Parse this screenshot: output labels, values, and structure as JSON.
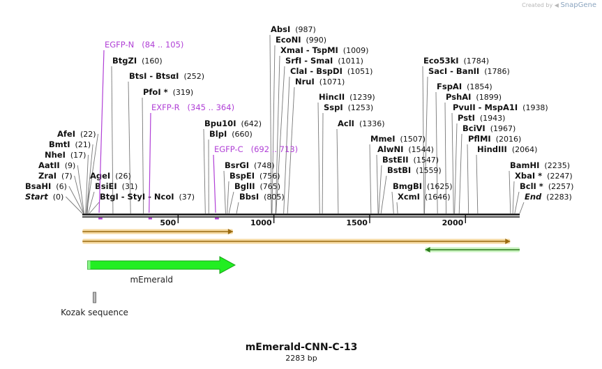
{
  "credit": {
    "prefix": "Created by",
    "brand": "SnapGene"
  },
  "map": {
    "title": "mEmerald-CNN-C-13",
    "length_label": "2283 bp",
    "length": 2283,
    "ruler_ticks": [
      "500",
      "1000",
      "1500",
      "2000"
    ],
    "colors": {
      "primer": "#b03fd6",
      "feature_green": "#22ee22",
      "orf_fill": "#f5d9a0",
      "orf_arrow": "#9a6a10",
      "kozak": "#bbbbbb"
    }
  },
  "enzymes": [
    {
      "name": "Start",
      "pos": "(0)",
      "bp": 0,
      "italic": true
    },
    {
      "name": "BsaHI",
      "pos": "(6)",
      "bp": 6
    },
    {
      "name": "ZraI",
      "pos": "(7)",
      "bp": 7
    },
    {
      "name": "AatII",
      "pos": "(9)",
      "bp": 9
    },
    {
      "name": "NheI",
      "pos": "(17)",
      "bp": 17
    },
    {
      "name": "BmtI",
      "pos": "(21)",
      "bp": 21
    },
    {
      "name": "AfeI",
      "pos": "(22)",
      "bp": 22
    },
    {
      "name": "BtgI - StyI - NcoI",
      "pos": "(37)",
      "bp": 37
    },
    {
      "name": "BsiEI",
      "pos": "(31)",
      "bp": 31
    },
    {
      "name": "AgeI",
      "pos": "(26)",
      "bp": 26
    },
    {
      "name": "BtgZI",
      "pos": "(160)",
      "bp": 160
    },
    {
      "name": "BtsI - BtsαI",
      "pos": "(252)",
      "bp": 252
    },
    {
      "name": "PfoI *",
      "pos": "(319)",
      "bp": 319
    },
    {
      "name": "Bpu10I",
      "pos": "(642)",
      "bp": 642
    },
    {
      "name": "BlpI",
      "pos": "(660)",
      "bp": 660
    },
    {
      "name": "BsrGI",
      "pos": "(748)",
      "bp": 748
    },
    {
      "name": "BspEI",
      "pos": "(756)",
      "bp": 756
    },
    {
      "name": "BglII",
      "pos": "(765)",
      "bp": 765
    },
    {
      "name": "BbsI",
      "pos": "(805)",
      "bp": 805
    },
    {
      "name": "AbsI",
      "pos": "(987)",
      "bp": 987
    },
    {
      "name": "EcoNI",
      "pos": "(990)",
      "bp": 990
    },
    {
      "name": "XmaI - TspMI",
      "pos": "(1009)",
      "bp": 1009
    },
    {
      "name": "SrfI - SmaI",
      "pos": "(1011)",
      "bp": 1011
    },
    {
      "name": "ClaI - BspDI",
      "pos": "(1051)",
      "bp": 1051
    },
    {
      "name": "NruI",
      "pos": "(1071)",
      "bp": 1071
    },
    {
      "name": "HincII",
      "pos": "(1239)",
      "bp": 1239
    },
    {
      "name": "SspI",
      "pos": "(1253)",
      "bp": 1253
    },
    {
      "name": "AclI",
      "pos": "(1336)",
      "bp": 1336
    },
    {
      "name": "MmeI",
      "pos": "(1507)",
      "bp": 1507
    },
    {
      "name": "AlwNI",
      "pos": "(1544)",
      "bp": 1544
    },
    {
      "name": "BstEII",
      "pos": "(1547)",
      "bp": 1547
    },
    {
      "name": "BstBI",
      "pos": "(1559)",
      "bp": 1559
    },
    {
      "name": "BmgBI",
      "pos": "(1625)",
      "bp": 1625
    },
    {
      "name": "XcmI",
      "pos": "(1646)",
      "bp": 1646
    },
    {
      "name": "Eco53kI",
      "pos": "(1784)",
      "bp": 1784
    },
    {
      "name": "SacI - BanII",
      "pos": "(1786)",
      "bp": 1786
    },
    {
      "name": "FspAI",
      "pos": "(1854)",
      "bp": 1854
    },
    {
      "name": "PshAI",
      "pos": "(1899)",
      "bp": 1899
    },
    {
      "name": "PvuII - MspA1I",
      "pos": "(1938)",
      "bp": 1938
    },
    {
      "name": "PstI",
      "pos": "(1943)",
      "bp": 1943
    },
    {
      "name": "BciVI",
      "pos": "(1967)",
      "bp": 1967
    },
    {
      "name": "PflMI",
      "pos": "(2016)",
      "bp": 2016
    },
    {
      "name": "HindIII",
      "pos": "(2064)",
      "bp": 2064
    },
    {
      "name": "BamHI",
      "pos": "(2235)",
      "bp": 2235
    },
    {
      "name": "XbaI *",
      "pos": "(2247)",
      "bp": 2247
    },
    {
      "name": "BclI *",
      "pos": "(2257)",
      "bp": 2257
    },
    {
      "name": "End",
      "pos": "(2283)",
      "bp": 2283,
      "italic": true
    }
  ],
  "primers": [
    {
      "name": "EGFP-N",
      "range": "(84 .. 105)",
      "start": 84,
      "end": 105
    },
    {
      "name": "EXFP-R",
      "range": "(345 .. 364)",
      "start": 345,
      "end": 364
    },
    {
      "name": "EGFP-C",
      "range": "(692 .. 713)",
      "start": 692,
      "end": 713
    }
  ],
  "features": [
    {
      "name": "mEmerald",
      "start": 31,
      "end": 750
    },
    {
      "name": "Kozak sequence",
      "start": 31,
      "end": 40
    }
  ],
  "orfs": [
    {
      "start": 1,
      "end": 786,
      "direction": "forward"
    },
    {
      "start": 1,
      "end": 2233,
      "direction": "forward"
    },
    {
      "start": 1790,
      "end": 2283,
      "direction": "reverse"
    }
  ]
}
